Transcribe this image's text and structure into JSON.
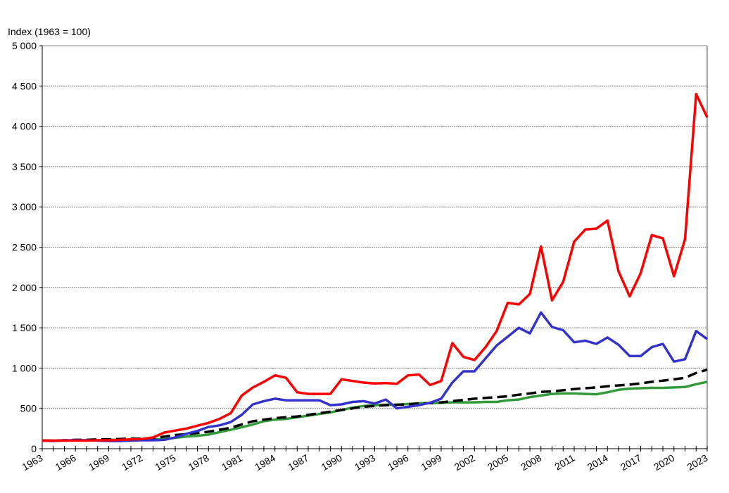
{
  "chart_data": {
    "type": "line",
    "title": "",
    "ylabel": "Index (1963 = 100)",
    "xlabel": "",
    "ylim": [
      0,
      5000
    ],
    "xlim": [
      1963,
      2023
    ],
    "yticks": [
      0,
      500,
      1000,
      1500,
      2000,
      2500,
      3000,
      3500,
      4000,
      4500,
      5000
    ],
    "ytick_labels": [
      "0",
      "500",
      "1 000",
      "1 500",
      "2 000",
      "2 500",
      "3 000",
      "3 500",
      "4 000",
      "4 500",
      "5 000"
    ],
    "xtick_labels": [
      "1963",
      "1966",
      "1969",
      "1972",
      "1975",
      "1978",
      "1981",
      "1984",
      "1987",
      "1990",
      "1993",
      "1996",
      "1999",
      "2002",
      "2005",
      "2008",
      "2011",
      "2014",
      "2017",
      "2020",
      "2023"
    ],
    "grid": {
      "y": true,
      "x": false,
      "style": "dotted"
    },
    "legend": null,
    "x": [
      1963,
      1964,
      1965,
      1966,
      1967,
      1968,
      1969,
      1970,
      1971,
      1972,
      1973,
      1974,
      1975,
      1976,
      1977,
      1978,
      1979,
      1980,
      1981,
      1982,
      1983,
      1984,
      1985,
      1986,
      1987,
      1988,
      1989,
      1990,
      1991,
      1992,
      1993,
      1994,
      1995,
      1996,
      1997,
      1998,
      1999,
      2000,
      2001,
      2002,
      2003,
      2004,
      2005,
      2006,
      2007,
      2008,
      2009,
      2010,
      2011,
      2012,
      2013,
      2014,
      2015,
      2016,
      2017,
      2018,
      2019,
      2020,
      2021,
      2022,
      2023
    ],
    "series": [
      {
        "name": "red-series",
        "color": "#ff0000",
        "dash": "solid",
        "values": [
          100,
          100,
          100,
          100,
          100,
          105,
          105,
          110,
          115,
          120,
          140,
          200,
          225,
          250,
          285,
          320,
          370,
          440,
          660,
          760,
          830,
          910,
          880,
          700,
          680,
          680,
          680,
          860,
          840,
          820,
          810,
          815,
          805,
          910,
          920,
          790,
          840,
          1310,
          1140,
          1100,
          1260,
          1460,
          1810,
          1790,
          1920,
          2510,
          1840,
          2070,
          2570,
          2720,
          2730,
          2830,
          2200,
          1890,
          2180,
          2650,
          2610,
          2140,
          2600,
          4400,
          4110
        ]
      },
      {
        "name": "blue-series",
        "color": "#3333cc",
        "dash": "solid",
        "values": [
          100,
          95,
          105,
          105,
          105,
          100,
          95,
          95,
          100,
          105,
          105,
          110,
          140,
          185,
          220,
          270,
          290,
          330,
          420,
          550,
          590,
          620,
          600,
          600,
          600,
          600,
          540,
          550,
          580,
          590,
          560,
          610,
          500,
          520,
          540,
          570,
          620,
          820,
          960,
          960,
          1120,
          1280,
          1390,
          1500,
          1430,
          1690,
          1510,
          1470,
          1320,
          1340,
          1300,
          1380,
          1290,
          1150,
          1150,
          1260,
          1300,
          1080,
          1110,
          1460,
          1360
        ]
      },
      {
        "name": "black-dashed-series",
        "color": "#000000",
        "dash": "dashed",
        "values": [
          100,
          100,
          105,
          110,
          110,
          115,
          115,
          120,
          125,
          125,
          130,
          150,
          170,
          180,
          195,
          210,
          235,
          260,
          300,
          340,
          360,
          380,
          390,
          400,
          420,
          440,
          460,
          480,
          500,
          520,
          530,
          540,
          545,
          550,
          560,
          565,
          575,
          590,
          605,
          620,
          630,
          640,
          650,
          670,
          685,
          705,
          710,
          725,
          740,
          750,
          760,
          775,
          785,
          795,
          810,
          830,
          845,
          860,
          880,
          940,
          980
        ]
      },
      {
        "name": "green-series",
        "color": "#33993a",
        "dash": "solid",
        "values": [
          100,
          100,
          100,
          105,
          105,
          105,
          110,
          110,
          110,
          115,
          115,
          120,
          135,
          150,
          160,
          175,
          205,
          235,
          265,
          300,
          340,
          360,
          370,
          390,
          410,
          430,
          450,
          480,
          510,
          530,
          540,
          545,
          545,
          555,
          565,
          565,
          570,
          575,
          575,
          575,
          580,
          580,
          600,
          610,
          640,
          660,
          680,
          685,
          685,
          680,
          675,
          700,
          730,
          745,
          750,
          755,
          755,
          760,
          765,
          800,
          830
        ]
      }
    ]
  }
}
